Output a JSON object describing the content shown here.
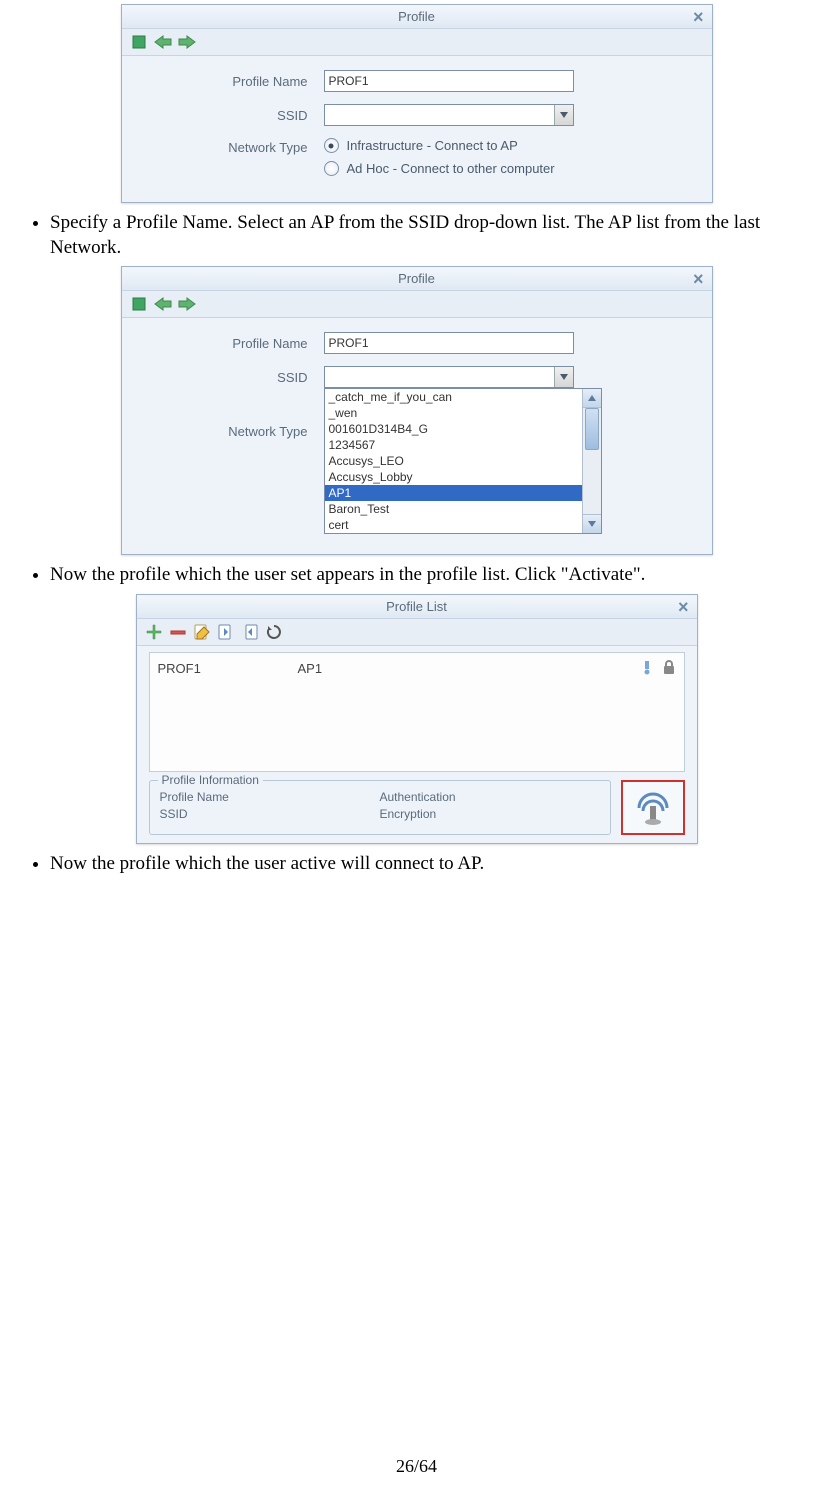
{
  "bullets": {
    "b1": "Specify a Profile Name. Select an AP from the SSID drop-down list. The AP list from the last Network.",
    "b2": "Now the profile which the user set appears in the profile list. Click \"Activate\".",
    "b3": "Now the profile which the user active will connect to AP."
  },
  "profile_dialog": {
    "title": "Profile",
    "close_glyph": "×",
    "labels": {
      "profile_name": "Profile Name",
      "ssid": "SSID",
      "network_type": "Network Type"
    },
    "profile_name_value": "PROF1",
    "ssid_value": "",
    "radios": {
      "infra": "Infrastructure - Connect to AP",
      "adhoc": "Ad Hoc - Connect to other computer"
    },
    "toolbar_icons": {
      "stop": "stop-icon",
      "back": "arrow-left-icon",
      "forward": "arrow-right-icon"
    }
  },
  "ssid_dropdown": {
    "items": [
      {
        "label": "_catch_me_if_you_can"
      },
      {
        "label": "_wen"
      },
      {
        "label": "001601D314B4_G"
      },
      {
        "label": "1234567"
      },
      {
        "label": "Accusys_LEO"
      },
      {
        "label": "Accusys_Lobby"
      },
      {
        "label": "AP1",
        "selected": true
      },
      {
        "label": "Baron_Test"
      },
      {
        "label": "cert"
      }
    ],
    "selection_color": "#316ac5"
  },
  "profile_list_dialog": {
    "title": "Profile List",
    "row": {
      "name": "PROF1",
      "ssid": "AP1"
    },
    "info": {
      "legend": "Profile Information",
      "left": {
        "l1": "Profile Name",
        "l2": "SSID"
      },
      "right": {
        "r1": "Authentication",
        "r2": "Encryption"
      }
    },
    "toolbar_icons": [
      "plus",
      "minus",
      "edit",
      "import",
      "export",
      "refresh"
    ],
    "activate_border_color": "#d03030"
  },
  "colors": {
    "dialog_border": "#9db2c9",
    "dialog_bg": "#e8eef6",
    "input_border": "#7a8fa6",
    "text_secondary": "#5a6b7c",
    "titlebar_grad_top": "#f3f7fb",
    "titlebar_grad_bot": "#dfe9f3"
  },
  "page_number": "26/64"
}
